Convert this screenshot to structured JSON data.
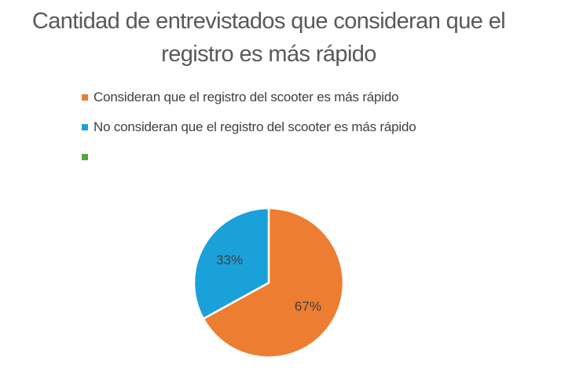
{
  "chart_data": {
    "type": "pie",
    "title": "Cantidad de entrevistados que consideran que el registro es más rápido",
    "title_lines": [
      "Cantidad de entrevistados que consideran que el",
      "registro es más rápido"
    ],
    "legend_placement": "top-left",
    "start_angle_deg": 0,
    "slices": [
      {
        "name": "Consideran que el registro del scooter es más rápido",
        "value": 67,
        "label": "67%",
        "color": "#ED7D31"
      },
      {
        "name": "No consideran que el registro del scooter es más rápido",
        "value": 33,
        "label": "33%",
        "color": "#1BA1D9"
      },
      {
        "name": "",
        "value": 0,
        "label": "",
        "color": "#5BA63C"
      }
    ]
  }
}
